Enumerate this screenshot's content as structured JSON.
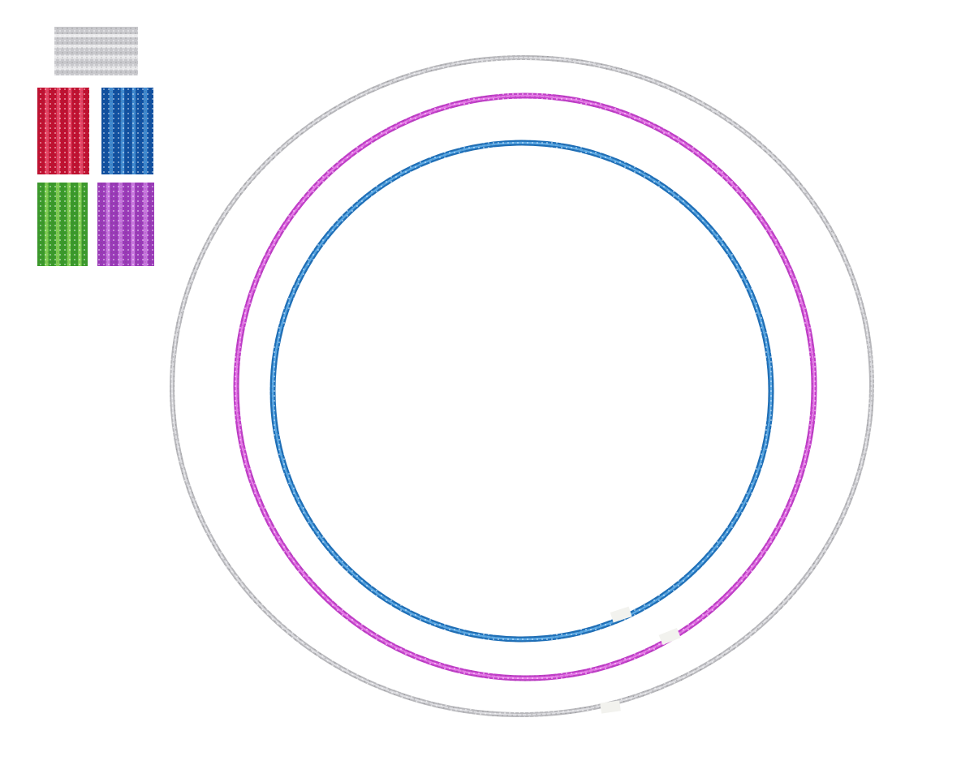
{
  "scene": {
    "background": "#ffffff",
    "hoops": [
      {
        "name": "silver-hoop",
        "color": "#b8b8bc",
        "highlight": "#e6e6ea"
      },
      {
        "name": "purple-hoop",
        "color": "#c03ec8",
        "highlight": "#f08af0"
      },
      {
        "name": "blue-hoop",
        "color": "#1e6fb8",
        "highlight": "#6ab8f0"
      }
    ],
    "tape_color": "#f2f2ee",
    "swatches": [
      {
        "name": "silver-swatch",
        "color": "#c8c8cc",
        "highlight": "#ffffff"
      },
      {
        "name": "red-swatch",
        "color": "#c01030",
        "highlight": "#ff6a8a"
      },
      {
        "name": "blue-swatch",
        "color": "#1050a0",
        "highlight": "#60b0f0"
      },
      {
        "name": "green-swatch",
        "color": "#3a9a2a",
        "highlight": "#b0f070"
      },
      {
        "name": "purple-swatch",
        "color": "#9a3ab8",
        "highlight": "#e8a0f8"
      }
    ]
  }
}
